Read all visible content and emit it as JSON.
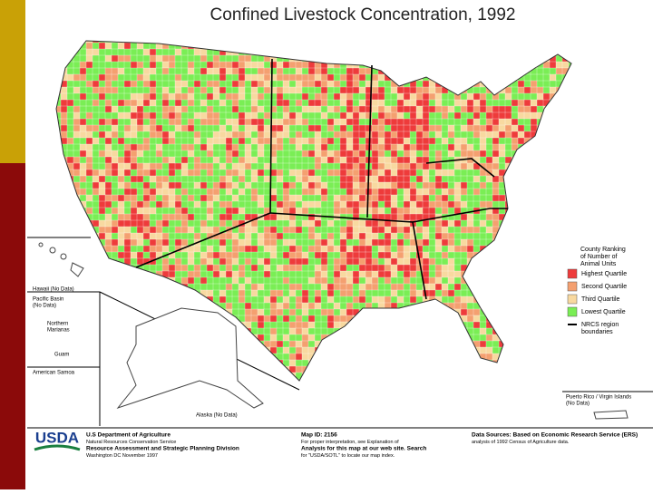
{
  "title": "Confined Livestock Concentration, 1992",
  "legend": {
    "title": [
      "County Ranking",
      "of Number of",
      "Animal Units"
    ],
    "items": [
      {
        "label": "Highest Quartile",
        "color": "#ee3b3b"
      },
      {
        "label": "Second Quartile",
        "color": "#f4a070"
      },
      {
        "label": "Third Quartile",
        "color": "#f8d9a0"
      },
      {
        "label": "Lowest Quartile",
        "color": "#7aee55"
      }
    ],
    "boundary": {
      "label": [
        "NRCS region",
        "boundaries"
      ],
      "color": "#000000"
    }
  },
  "insets": {
    "hawaii": "Hawaii (No Data)",
    "pacific": [
      "Pacific Basin",
      "(No Data)"
    ],
    "marianas": [
      "Northern",
      "Marianas"
    ],
    "guam": "Guam",
    "samoa": "American Samoa",
    "alaska": "Alaska (No Data)",
    "puerto_rico": [
      "Puerto Rico / Virgin Islands",
      "(No Data)"
    ]
  },
  "footer": {
    "logo": "USDA",
    "agency": [
      "U.S Department of Agriculture",
      "Natural Resources Conservation Service",
      "Resource Assessment and Strategic Planning Division",
      "Washington DC    November 1997"
    ],
    "map_info": [
      "Map ID: 2156",
      "For proper interpretation, see Explanation of",
      "Analysis for this map at our web site.  Search",
      "for \"USDA/SOTL\" to locate our map index."
    ],
    "sources": [
      "Data Sources: Based on Economic Research Service (ERS)",
      "analysis of 1992 Census of Agriculture data."
    ]
  }
}
